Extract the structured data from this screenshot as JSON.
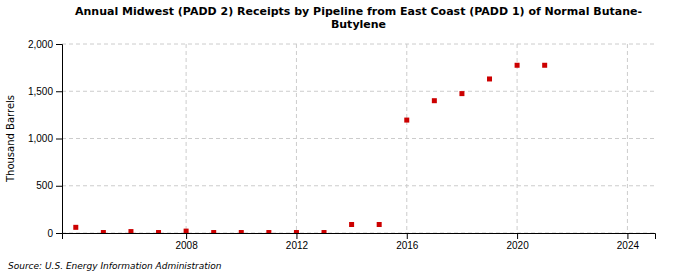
{
  "chart_data": {
    "type": "scatter",
    "title": "Annual Midwest (PADD 2) Receipts by Pipeline from East Coast (PADD 1) of Normal Butane-\nButylene",
    "ylabel": "Thousand Barrels",
    "source": "Source: U.S. Energy Information Administration",
    "x": [
      2004,
      2005,
      2006,
      2007,
      2008,
      2009,
      2010,
      2011,
      2012,
      2013,
      2014,
      2015,
      2016,
      2017,
      2018,
      2019,
      2020,
      2021
    ],
    "values": [
      60,
      5,
      15,
      5,
      20,
      5,
      5,
      5,
      5,
      5,
      90,
      90,
      1195,
      1400,
      1475,
      1630,
      1775,
      1775
    ],
    "color": "#cc0000",
    "marker": "square",
    "xlim": [
      2003.5,
      2025
    ],
    "xticks": [
      2008,
      2012,
      2016,
      2020,
      2024
    ],
    "ylim": [
      0,
      2000
    ],
    "yticks": [
      0,
      500,
      {
        "value": 1000,
        "label": "1,000"
      },
      {
        "value": 1500,
        "label": "1,500"
      },
      {
        "value": 2000,
        "label": "2,000"
      }
    ],
    "grid": true
  }
}
